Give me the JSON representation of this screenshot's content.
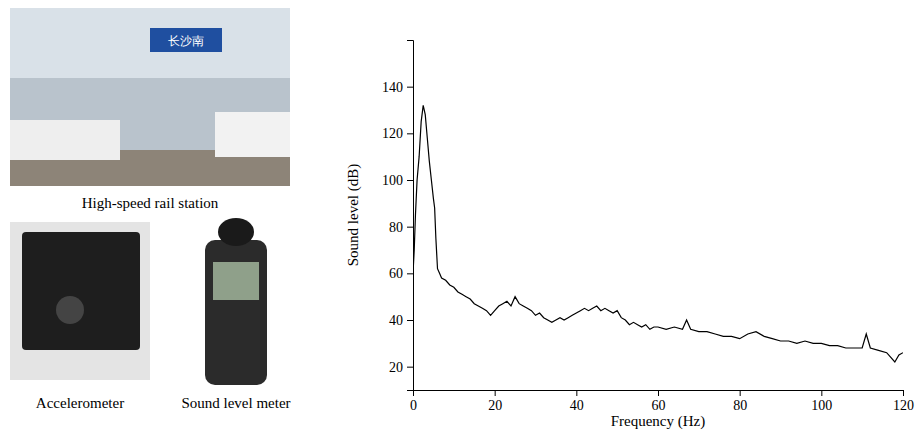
{
  "photos": [
    {
      "caption": "High-speed rail station",
      "sign": "长沙南"
    },
    {
      "caption": "Accelerometer"
    },
    {
      "caption": "Sound level meter"
    }
  ],
  "chart_data": {
    "type": "line",
    "x_label": "Frequency (Hz)",
    "y_label": "Sound level (dB)",
    "color": "#000000",
    "grid": false,
    "xlim": [
      0,
      120
    ],
    "xticks": [
      0,
      20,
      40,
      60,
      80,
      100,
      120
    ],
    "ylim": [
      10,
      160
    ],
    "yticks": [
      20,
      40,
      60,
      80,
      100,
      120,
      140
    ],
    "x": [
      0,
      0.3,
      0.6,
      1,
      1.5,
      2,
      2.5,
      3,
      3.5,
      4,
      4.5,
      5,
      5.3,
      5.6,
      6,
      6.5,
      7,
      8,
      9,
      10,
      11,
      12,
      13,
      14,
      15,
      16,
      17,
      18,
      19,
      20,
      21,
      22,
      23,
      24,
      25,
      26,
      27,
      28,
      29,
      30,
      31,
      32,
      33,
      34,
      35,
      36,
      37,
      38,
      39,
      40,
      41,
      42,
      43,
      44,
      45,
      46,
      47,
      48,
      49,
      50,
      51,
      52,
      53,
      54,
      55,
      56,
      57,
      58,
      59,
      60,
      62,
      64,
      66,
      67,
      68,
      70,
      72,
      74,
      76,
      78,
      80,
      82,
      84,
      86,
      88,
      90,
      92,
      94,
      96,
      98,
      100,
      102,
      104,
      106,
      108,
      110,
      111,
      112,
      114,
      116,
      118,
      119,
      120
    ],
    "values": [
      60,
      70,
      85,
      100,
      110,
      125,
      132,
      128,
      118,
      108,
      100,
      92,
      88,
      75,
      62,
      60,
      58,
      57,
      55,
      54,
      52,
      51,
      50,
      49,
      47,
      46,
      45,
      44,
      42,
      44,
      46,
      47,
      48,
      46,
      50,
      47,
      46,
      45,
      44,
      42,
      43,
      41,
      40,
      39,
      40,
      41,
      40,
      41,
      42,
      43,
      44,
      45,
      44,
      45,
      46,
      44,
      45,
      44,
      43,
      44,
      41,
      40,
      38,
      39,
      38,
      37,
      38,
      36,
      37,
      37,
      36,
      37,
      36,
      40,
      36,
      35,
      35,
      34,
      33,
      33,
      32,
      34,
      35,
      33,
      32,
      31,
      31,
      30,
      31,
      30,
      30,
      29,
      29,
      28,
      28,
      28,
      34,
      28,
      27,
      26,
      22,
      25,
      26
    ]
  }
}
